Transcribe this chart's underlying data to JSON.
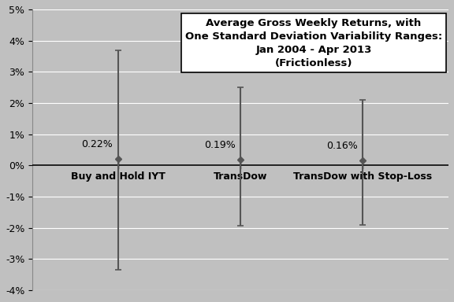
{
  "categories": [
    "Buy and Hold IYT",
    "TransDow",
    "TransDow with Stop-Loss"
  ],
  "means": [
    0.0022,
    0.0019,
    0.0016
  ],
  "upper_errors": [
    0.0348,
    0.0231,
    0.0194
  ],
  "lower_errors": [
    0.0357,
    0.0212,
    0.0206
  ],
  "mean_labels": [
    "0.22%",
    "0.19%",
    "0.16%"
  ],
  "x_positions": [
    1,
    2,
    3
  ],
  "ylim": [
    -0.04,
    0.05
  ],
  "yticks": [
    -0.04,
    -0.03,
    -0.02,
    -0.01,
    0.0,
    0.01,
    0.02,
    0.03,
    0.04,
    0.05
  ],
  "ytick_labels": [
    "-4%",
    "-3%",
    "-2%",
    "-1%",
    "0%",
    "1%",
    "2%",
    "3%",
    "4%",
    "5%"
  ],
  "xlim": [
    0.3,
    3.7
  ],
  "background_color": "#c0c0c0",
  "errorbar_color": "#555555",
  "marker_color": "#555555",
  "title_line1": "Average Gross Weekly Returns, with",
  "title_line2": "One Standard Deviation Variability Ranges:",
  "title_line3": "Jan 2004 - Apr 2013",
  "title_line4": "(Frictionless)",
  "title_fontsize": 9.5,
  "label_fontsize": 9,
  "mean_label_fontsize": 9,
  "tick_fontsize": 9
}
